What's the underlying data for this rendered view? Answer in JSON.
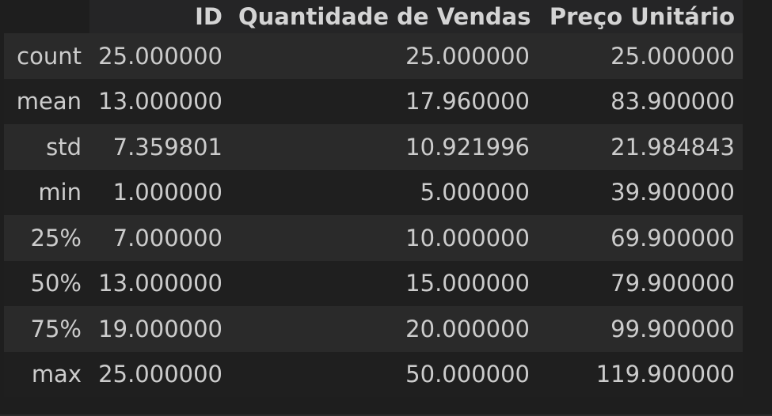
{
  "table": {
    "columns": [
      "",
      "ID",
      "Quantidade de Vendas",
      "Preço Unitário"
    ],
    "rows": [
      {
        "label": "count",
        "id": "25.000000",
        "qty": "25.000000",
        "price": "25.000000"
      },
      {
        "label": "mean",
        "id": "13.000000",
        "qty": "17.960000",
        "price": "83.900000"
      },
      {
        "label": "std",
        "id": "7.359801",
        "qty": "10.921996",
        "price": "21.984843"
      },
      {
        "label": "min",
        "id": "1.000000",
        "qty": "5.000000",
        "price": "39.900000"
      },
      {
        "label": "25%",
        "id": "7.000000",
        "qty": "10.000000",
        "price": "69.900000"
      },
      {
        "label": "50%",
        "id": "13.000000",
        "qty": "15.000000",
        "price": "79.900000"
      },
      {
        "label": "75%",
        "id": "19.000000",
        "qty": "20.000000",
        "price": "99.900000"
      },
      {
        "label": "max",
        "id": "25.000000",
        "qty": "50.000000",
        "price": "119.900000"
      }
    ]
  }
}
